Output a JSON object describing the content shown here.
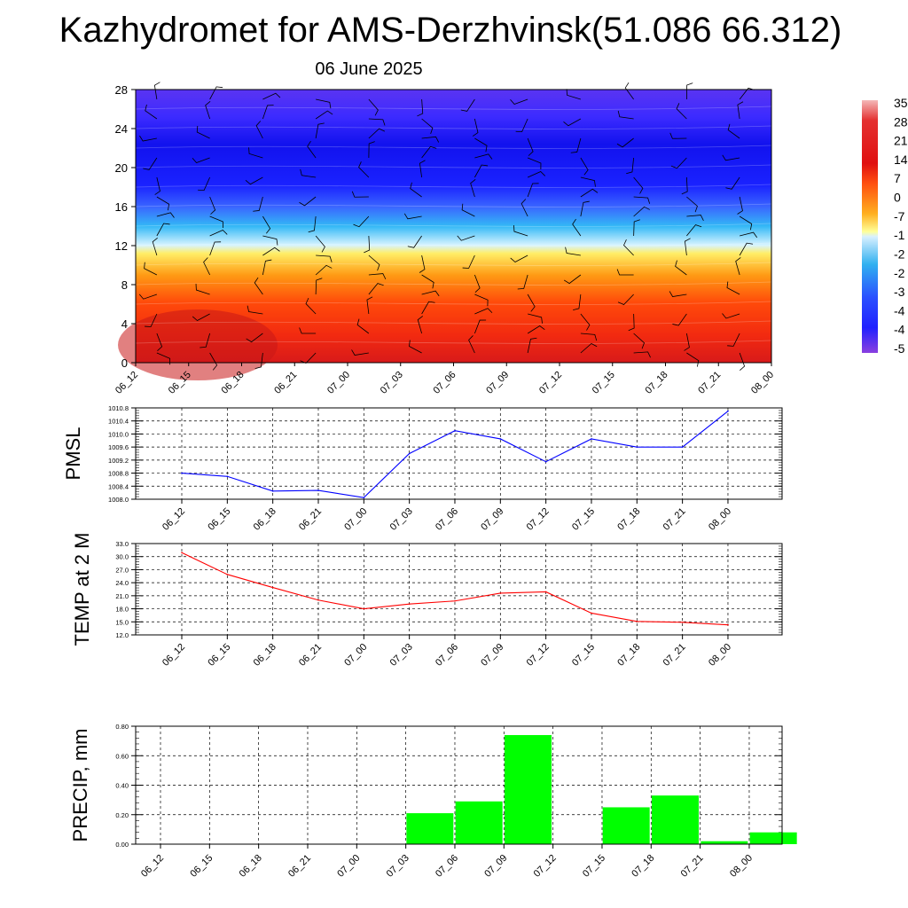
{
  "header": {
    "title": "Kazhydromet for AMS-Derzhvinsk(51.086 66.312)",
    "date": "06 June 2025"
  },
  "colors": {
    "pmsl_line": "#0000ff",
    "temp_line": "#ff0000",
    "precip_bar": "#00ff00",
    "grid": "#000000"
  },
  "chart_data": [
    {
      "type": "heatmap",
      "title": "",
      "xlabel": "",
      "ylabel": "",
      "categories": [
        "06_12",
        "06_15",
        "06_18",
        "06_21",
        "07_00",
        "07_03",
        "07_06",
        "07_09",
        "07_12",
        "07_15",
        "07_18",
        "07_21",
        "08_00"
      ],
      "yticks": [
        "0",
        "4",
        "8",
        "12",
        "16",
        "20",
        "24",
        "28"
      ],
      "ylim": [
        0,
        28
      ],
      "colorbar_labels": [
        "35",
        "28",
        "21",
        "14",
        "7",
        "0",
        "-7",
        "-1",
        "-2",
        "-2",
        "-3",
        "-4",
        "-4",
        "-5"
      ],
      "grid": false
    },
    {
      "type": "line",
      "ylabel": "PMSL",
      "categories": [
        "06_12",
        "06_15",
        "06_18",
        "06_21",
        "07_00",
        "07_03",
        "07_06",
        "07_09",
        "07_12",
        "07_15",
        "07_18",
        "07_21",
        "08_00"
      ],
      "yticks": [
        "1008.0",
        "1008.4",
        "1008.8",
        "1009.2",
        "1009.6",
        "1010.0",
        "1010.4",
        "1010.8"
      ],
      "ylim": [
        1008.0,
        1010.8
      ],
      "series": [
        {
          "values": [
            1008.8,
            1008.7,
            1008.25,
            1008.27,
            1008.05,
            1009.4,
            1010.1,
            1009.85,
            1009.15,
            1009.85,
            1009.6,
            1009.6,
            1010.7
          ]
        }
      ],
      "grid": true
    },
    {
      "type": "line",
      "ylabel": "TEMP at 2 M",
      "categories": [
        "06_12",
        "06_15",
        "06_18",
        "06_21",
        "07_00",
        "07_03",
        "07_06",
        "07_09",
        "07_12",
        "07_15",
        "07_18",
        "07_21",
        "08_00"
      ],
      "yticks": [
        "12.0",
        "15.0",
        "18.0",
        "21.0",
        "24.0",
        "27.0",
        "30.0",
        "33.0"
      ],
      "ylim": [
        12.0,
        33.0
      ],
      "series": [
        {
          "values": [
            30.9,
            25.9,
            22.9,
            20.0,
            18.0,
            19.1,
            19.8,
            21.6,
            21.9,
            17.0,
            15.1,
            14.9,
            14.3
          ]
        }
      ],
      "grid": true
    },
    {
      "type": "bar",
      "ylabel": "PRECIP, mm",
      "categories": [
        "06_12",
        "06_15",
        "06_18",
        "06_21",
        "07_00",
        "07_03",
        "07_06",
        "07_09",
        "07_12",
        "07_15",
        "07_18",
        "07_21",
        "08_00"
      ],
      "yticks": [
        "0.00",
        "0.20",
        "0.40",
        "0.60",
        "0.80"
      ],
      "ylim": [
        0.0,
        0.8
      ],
      "values": [
        0,
        0,
        0,
        0,
        0,
        0.21,
        0.29,
        0.74,
        0,
        0.25,
        0.33,
        0.02,
        0.08
      ],
      "grid": true
    }
  ]
}
